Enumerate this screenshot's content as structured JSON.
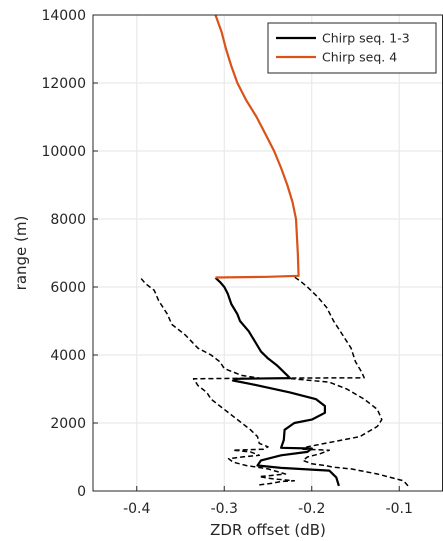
{
  "chart_data": {
    "type": "line",
    "xlabel": "ZDR offset (dB)",
    "ylabel": "range (m)",
    "xlim": [
      -0.45,
      -0.05
    ],
    "ylim": [
      0,
      14000
    ],
    "xticks": [
      -0.4,
      -0.3,
      -0.2,
      -0.1
    ],
    "xtick_labels": [
      "-0.4",
      "-0.3",
      "-0.2",
      "-0.1"
    ],
    "yticks": [
      0,
      2000,
      4000,
      6000,
      8000,
      10000,
      12000,
      14000
    ],
    "ytick_labels": [
      "0",
      "2000",
      "4000",
      "6000",
      "8000",
      "10000",
      "12000",
      "14000"
    ],
    "grid": true,
    "legend_position": "top-right",
    "colors": {
      "seq13": "#000000",
      "seq4": "#d95319",
      "grid": "#e6e6e6",
      "axis": "#262626"
    },
    "series": [
      {
        "name": "Chirp seq. 1-3",
        "style": "solid",
        "color": "#000000",
        "points": [
          [
            -0.169,
            150
          ],
          [
            -0.172,
            400
          ],
          [
            -0.18,
            600
          ],
          [
            -0.235,
            680
          ],
          [
            -0.262,
            750
          ],
          [
            -0.258,
            900
          ],
          [
            -0.235,
            1050
          ],
          [
            -0.205,
            1150
          ],
          [
            -0.2,
            1250
          ],
          [
            -0.235,
            1270
          ],
          [
            -0.232,
            1500
          ],
          [
            -0.231,
            1800
          ],
          [
            -0.22,
            2000
          ],
          [
            -0.2,
            2100
          ],
          [
            -0.185,
            2300
          ],
          [
            -0.185,
            2500
          ],
          [
            -0.195,
            2700
          ],
          [
            -0.225,
            2900
          ],
          [
            -0.27,
            3150
          ],
          [
            -0.29,
            3250
          ],
          [
            -0.285,
            3300
          ],
          [
            -0.225,
            3320
          ],
          [
            -0.228,
            3400
          ],
          [
            -0.24,
            3700
          ],
          [
            -0.25,
            3900
          ],
          [
            -0.258,
            4100
          ],
          [
            -0.265,
            4400
          ],
          [
            -0.272,
            4700
          ],
          [
            -0.282,
            5000
          ],
          [
            -0.285,
            5200
          ],
          [
            -0.292,
            5500
          ],
          [
            -0.296,
            5800
          ],
          [
            -0.3,
            6000
          ],
          [
            -0.305,
            6150
          ],
          [
            -0.31,
            6270
          ]
        ]
      },
      {
        "name": "",
        "style": "dashed",
        "color": "#000000",
        "points": [
          [
            -0.26,
            180
          ],
          [
            -0.245,
            230
          ],
          [
            -0.235,
            280
          ],
          [
            -0.22,
            300
          ],
          [
            -0.245,
            360
          ],
          [
            -0.26,
            420
          ],
          [
            -0.23,
            500
          ],
          [
            -0.25,
            650
          ],
          [
            -0.275,
            750
          ],
          [
            -0.29,
            850
          ],
          [
            -0.295,
            950
          ],
          [
            -0.28,
            1000
          ],
          [
            -0.26,
            1050
          ],
          [
            -0.27,
            1150
          ],
          [
            -0.29,
            1200
          ],
          [
            -0.255,
            1230
          ],
          [
            -0.25,
            1300
          ],
          [
            -0.26,
            1400
          ],
          [
            -0.262,
            1600
          ],
          [
            -0.27,
            1800
          ],
          [
            -0.29,
            2200
          ],
          [
            -0.3,
            2400
          ],
          [
            -0.315,
            2700
          ],
          [
            -0.32,
            2900
          ],
          [
            -0.33,
            3100
          ],
          [
            -0.335,
            3300
          ],
          [
            -0.26,
            3320
          ],
          [
            -0.28,
            3400
          ],
          [
            -0.3,
            3600
          ],
          [
            -0.305,
            3800
          ],
          [
            -0.315,
            4000
          ],
          [
            -0.33,
            4200
          ],
          [
            -0.345,
            4600
          ],
          [
            -0.36,
            4900
          ],
          [
            -0.365,
            5200
          ],
          [
            -0.375,
            5600
          ],
          [
            -0.38,
            5900
          ],
          [
            -0.39,
            6100
          ],
          [
            -0.395,
            6250
          ]
        ]
      },
      {
        "name": "",
        "style": "dashed",
        "color": "#000000",
        "points": [
          [
            -0.09,
            150
          ],
          [
            -0.095,
            300
          ],
          [
            -0.11,
            400
          ],
          [
            -0.125,
            500
          ],
          [
            -0.145,
            600
          ],
          [
            -0.155,
            650
          ],
          [
            -0.175,
            700
          ],
          [
            -0.185,
            750
          ],
          [
            -0.2,
            800
          ],
          [
            -0.21,
            900
          ],
          [
            -0.205,
            1000
          ],
          [
            -0.19,
            1100
          ],
          [
            -0.18,
            1200
          ],
          [
            -0.21,
            1230
          ],
          [
            -0.205,
            1300
          ],
          [
            -0.185,
            1400
          ],
          [
            -0.165,
            1500
          ],
          [
            -0.145,
            1600
          ],
          [
            -0.135,
            1750
          ],
          [
            -0.125,
            1900
          ],
          [
            -0.12,
            2100
          ],
          [
            -0.125,
            2400
          ],
          [
            -0.14,
            2700
          ],
          [
            -0.16,
            3000
          ],
          [
            -0.18,
            3200
          ],
          [
            -0.23,
            3320
          ],
          [
            -0.14,
            3330
          ],
          [
            -0.143,
            3500
          ],
          [
            -0.15,
            3800
          ],
          [
            -0.155,
            4200
          ],
          [
            -0.165,
            4600
          ],
          [
            -0.175,
            5000
          ],
          [
            -0.183,
            5400
          ],
          [
            -0.193,
            5700
          ],
          [
            -0.205,
            6000
          ],
          [
            -0.212,
            6150
          ],
          [
            -0.22,
            6300
          ]
        ]
      },
      {
        "name": "Chirp seq. 4",
        "style": "solid",
        "color": "#d95319",
        "points": [
          [
            -0.31,
            6280
          ],
          [
            -0.25,
            6300
          ],
          [
            -0.215,
            6330
          ],
          [
            -0.216,
            7000
          ],
          [
            -0.217,
            7500
          ],
          [
            -0.218,
            8000
          ],
          [
            -0.222,
            8500
          ],
          [
            -0.228,
            9000
          ],
          [
            -0.235,
            9500
          ],
          [
            -0.243,
            10000
          ],
          [
            -0.253,
            10500
          ],
          [
            -0.263,
            11000
          ],
          [
            -0.275,
            11500
          ],
          [
            -0.285,
            12000
          ],
          [
            -0.292,
            12500
          ],
          [
            -0.298,
            13000
          ],
          [
            -0.303,
            13500
          ],
          [
            -0.31,
            14000
          ]
        ]
      }
    ]
  }
}
